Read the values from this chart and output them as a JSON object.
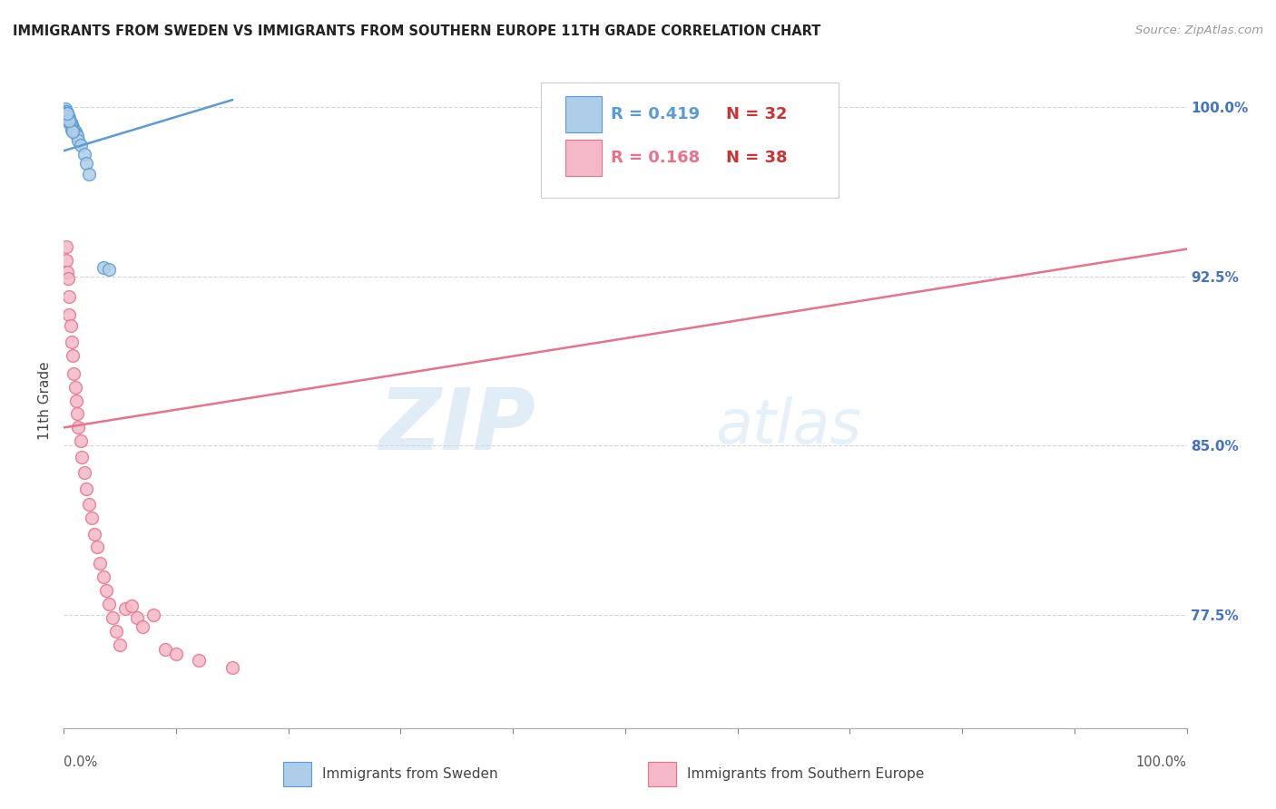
{
  "title": "IMMIGRANTS FROM SWEDEN VS IMMIGRANTS FROM SOUTHERN EUROPE 11TH GRADE CORRELATION CHART",
  "source": "Source: ZipAtlas.com",
  "ylabel": "11th Grade",
  "yticks": [
    0.775,
    0.85,
    0.925,
    1.0
  ],
  "ytick_labels": [
    "77.5%",
    "85.0%",
    "92.5%",
    "100.0%"
  ],
  "watermark_zip": "ZIP",
  "watermark_atlas": "atlas",
  "legend_blue_R": "0.419",
  "legend_blue_N": "32",
  "legend_pink_R": "0.168",
  "legend_pink_N": "38",
  "legend_blue_label": "Immigrants from Sweden",
  "legend_pink_label": "Immigrants from Southern Europe",
  "blue_fill": "#aecde8",
  "blue_edge": "#5b9bd5",
  "pink_fill": "#f4b8c8",
  "pink_edge": "#e8728a",
  "blue_line_color": "#5b9bd5",
  "pink_line_color": "#e8728a",
  "blue_scatter_x": [
    0.001,
    0.001,
    0.002,
    0.002,
    0.003,
    0.003,
    0.004,
    0.004,
    0.005,
    0.005,
    0.006,
    0.007,
    0.008,
    0.009,
    0.01,
    0.011,
    0.012,
    0.013,
    0.015,
    0.018,
    0.02,
    0.022,
    0.003,
    0.004,
    0.005,
    0.006,
    0.007,
    0.008,
    0.035,
    0.04,
    0.005,
    0.003
  ],
  "blue_scatter_y": [
    0.999,
    0.998,
    0.998,
    0.997,
    0.997,
    0.997,
    0.996,
    0.995,
    0.995,
    0.994,
    0.993,
    0.992,
    0.991,
    0.99,
    0.989,
    0.988,
    0.987,
    0.985,
    0.983,
    0.979,
    0.975,
    0.97,
    0.996,
    0.994,
    0.993,
    0.992,
    0.99,
    0.989,
    0.929,
    0.928,
    0.994,
    0.997
  ],
  "pink_scatter_x": [
    0.002,
    0.002,
    0.003,
    0.004,
    0.005,
    0.005,
    0.006,
    0.007,
    0.008,
    0.009,
    0.01,
    0.011,
    0.012,
    0.013,
    0.015,
    0.016,
    0.018,
    0.02,
    0.022,
    0.025,
    0.027,
    0.03,
    0.032,
    0.035,
    0.038,
    0.04,
    0.043,
    0.047,
    0.05,
    0.055,
    0.06,
    0.065,
    0.07,
    0.08,
    0.09,
    0.1,
    0.12,
    0.15
  ],
  "pink_scatter_y": [
    0.932,
    0.938,
    0.927,
    0.924,
    0.916,
    0.908,
    0.903,
    0.896,
    0.89,
    0.882,
    0.876,
    0.87,
    0.864,
    0.858,
    0.852,
    0.845,
    0.838,
    0.831,
    0.824,
    0.818,
    0.811,
    0.805,
    0.798,
    0.792,
    0.786,
    0.78,
    0.774,
    0.768,
    0.762,
    0.778,
    0.779,
    0.774,
    0.77,
    0.775,
    0.76,
    0.758,
    0.755,
    0.752
  ],
  "xlim": [
    0.0,
    1.0
  ],
  "ylim": [
    0.725,
    1.015
  ],
  "blue_line_x": [
    0.0,
    0.15
  ],
  "blue_line_y": [
    0.9805,
    1.003
  ],
  "pink_line_x": [
    0.0,
    1.0
  ],
  "pink_line_y": [
    0.858,
    0.937
  ],
  "grid_color": "#d5d5d5",
  "right_label_color": "#4472c4",
  "marker_size": 100,
  "title_fontsize": 10.5,
  "source_fontsize": 9.5
}
